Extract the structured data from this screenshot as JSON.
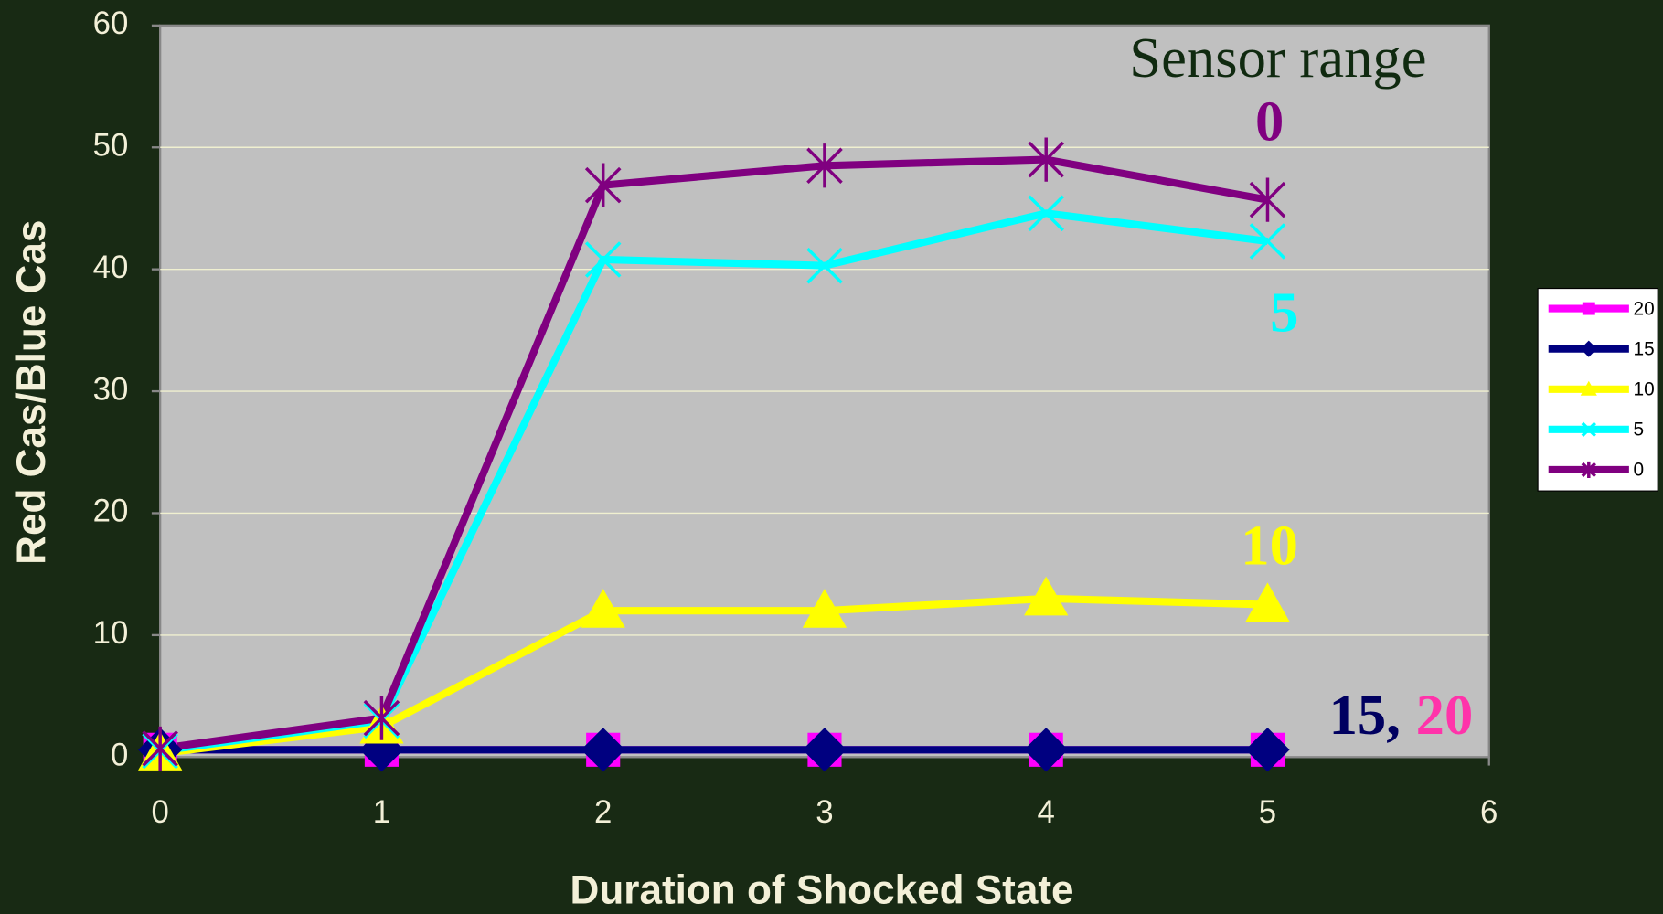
{
  "chart_data": {
    "type": "line",
    "x_label": "Duration of Shocked State",
    "y_label": "Red Cas/Blue Cas",
    "x": [
      0,
      1,
      2,
      3,
      4,
      5
    ],
    "series": [
      {
        "name": "20",
        "color": "#ff00ff",
        "marker": "square",
        "values": [
          0.6,
          0.6,
          0.6,
          0.6,
          0.6,
          0.6
        ]
      },
      {
        "name": "15",
        "color": "#000080",
        "marker": "diamond",
        "values": [
          0.6,
          0.6,
          0.6,
          0.6,
          0.6,
          0.6
        ]
      },
      {
        "name": "10",
        "color": "#ffff00",
        "marker": "triangle",
        "values": [
          0.3,
          2.5,
          12,
          12,
          13,
          12.5
        ]
      },
      {
        "name": "5",
        "color": "#00ffff",
        "marker": "x",
        "values": [
          0.5,
          3,
          40.8,
          40.3,
          44.6,
          42.3
        ]
      },
      {
        "name": "0",
        "color": "#800080",
        "marker": "asterisk",
        "values": [
          0.7,
          3.2,
          46.9,
          48.5,
          49,
          45.7
        ]
      }
    ],
    "xlim": [
      0,
      6
    ],
    "xticks": [
      0,
      1,
      2,
      3,
      4,
      5,
      6
    ],
    "ylim": [
      0,
      60
    ],
    "yticks": [
      0,
      10,
      20,
      30,
      40,
      50,
      60
    ],
    "grid": true,
    "legend": "right",
    "annotations": [
      {
        "text": "Sensor range",
        "color": "#102a10"
      },
      {
        "text": "0",
        "color": "#800080"
      },
      {
        "text": "5",
        "color": "#00ffff"
      },
      {
        "text": "10",
        "color": "#ffff00"
      },
      {
        "text": "15",
        "color": "#000060"
      },
      {
        "text": ",",
        "color": "#000060"
      },
      {
        "text": "20",
        "color": "#ff33aa"
      }
    ]
  }
}
